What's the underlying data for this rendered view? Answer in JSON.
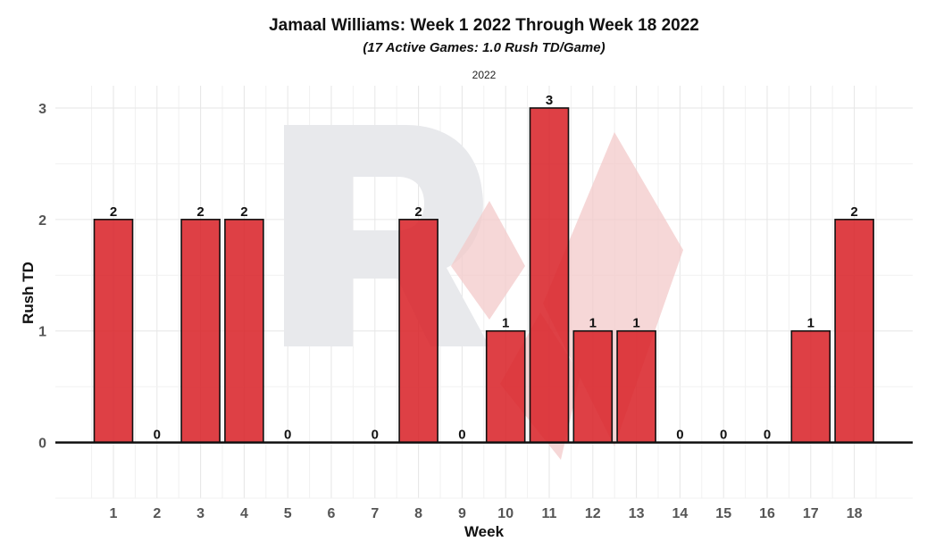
{
  "chart_data": {
    "type": "bar",
    "title": "Jamaal Williams: Week 1 2022 Through Week 18 2022",
    "subtitle": "(17 Active Games: 1.0 Rush TD/Game)",
    "facet_label": "2022",
    "xlabel": "Week",
    "ylabel": "Rush TD",
    "categories": [
      "1",
      "2",
      "3",
      "4",
      "5",
      "6",
      "7",
      "8",
      "9",
      "10",
      "11",
      "12",
      "13",
      "14",
      "15",
      "16",
      "17",
      "18"
    ],
    "values": [
      2,
      0,
      2,
      2,
      0,
      null,
      0,
      2,
      0,
      1,
      3,
      1,
      1,
      0,
      0,
      0,
      1,
      2
    ],
    "data_labels": [
      "2",
      "0",
      "2",
      "2",
      "0",
      "",
      "0",
      "2",
      "0",
      "1",
      "3",
      "1",
      "1",
      "0",
      "0",
      "0",
      "1",
      "2"
    ],
    "yticks": [
      0,
      1,
      2,
      3
    ],
    "ylim": [
      -0.5,
      3.2
    ],
    "grid": true,
    "bar_color": "#d92126",
    "watermark_colors": [
      "#e8e9ec",
      "#f3c9c9"
    ]
  }
}
